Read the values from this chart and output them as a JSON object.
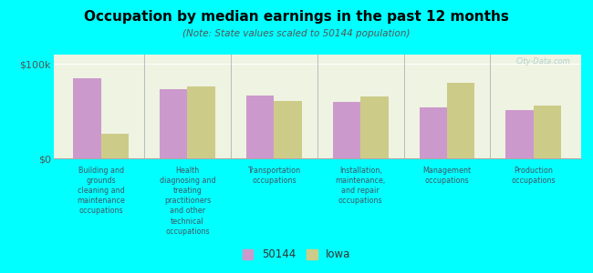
{
  "title": "Occupation by median earnings in the past 12 months",
  "subtitle": "(Note: State values scaled to 50144 population)",
  "categories": [
    "Building and\ngrounds\ncleaning and\nmaintenance\noccupations",
    "Health\ndiagnosing and\ntreating\npractitioners\nand other\ntechnical\noccupations",
    "Transportation\noccupations",
    "Installation,\nmaintenance,\nand repair\noccupations",
    "Management\noccupations",
    "Production\noccupations"
  ],
  "values_50144": [
    85000,
    73000,
    67000,
    60000,
    54000,
    51000
  ],
  "values_iowa": [
    26000,
    76000,
    61000,
    66000,
    80000,
    56000
  ],
  "color_50144": "#cc99cc",
  "color_iowa": "#cccc88",
  "ytick_label_100k": "$100k",
  "ytick_label_0": "$0",
  "ylim_max": 110000,
  "background_color": "#00ffff",
  "plot_bg_color": "#eef3e2",
  "watermark": "City-Data.com",
  "legend_50144": "50144",
  "legend_iowa": "Iowa",
  "bar_width": 0.32
}
